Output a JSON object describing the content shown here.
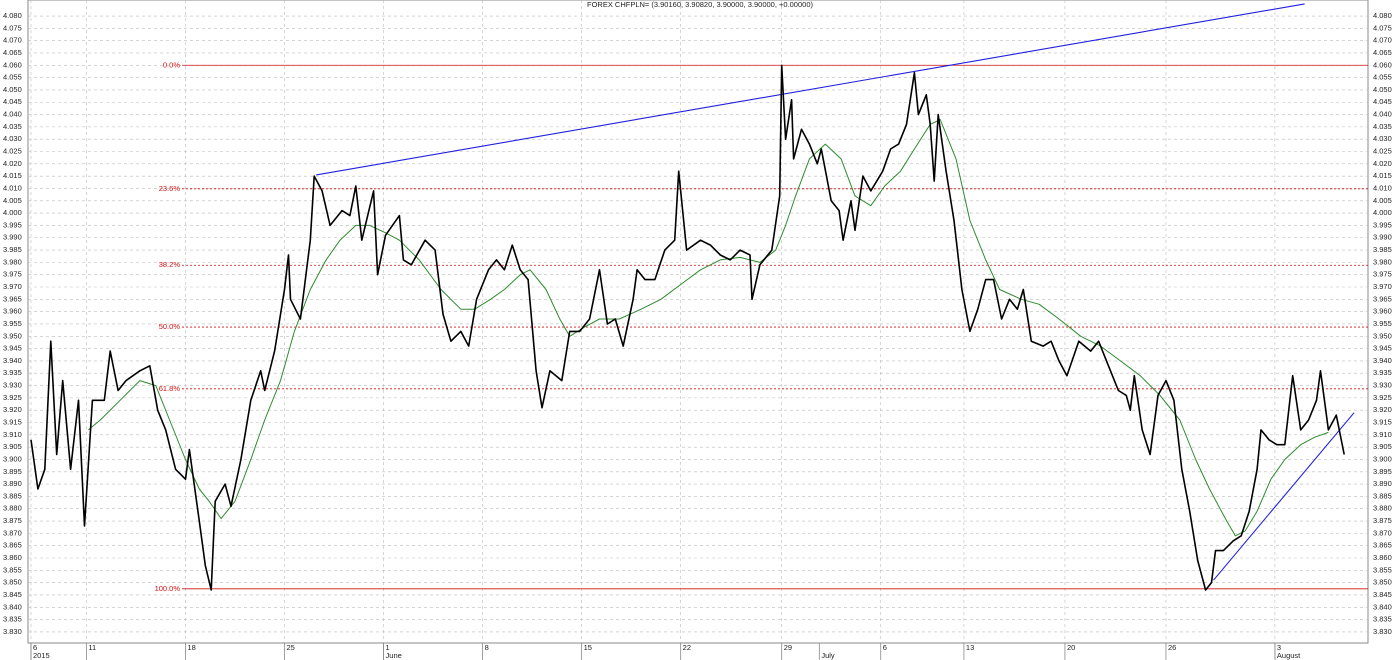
{
  "chart_data": {
    "type": "line",
    "title": "FOREX CHFPLN= (3.90160, 3.90820, 3.90000, 3.90000, +0.00000)",
    "xlim": [
      -0.15,
      67.5
    ],
    "ylim": [
      3.8255,
      4.0865
    ],
    "grid": true,
    "xticks": [
      {
        "value": 0,
        "label": "6"
      },
      {
        "value": 2.8,
        "label": "11"
      },
      {
        "value": 7.8,
        "label": "18"
      },
      {
        "value": 12.8,
        "label": "25"
      },
      {
        "value": 17.8,
        "label": "1"
      },
      {
        "value": 22.8,
        "label": "8"
      },
      {
        "value": 27.8,
        "label": "15"
      },
      {
        "value": 32.8,
        "label": "22"
      },
      {
        "value": 37.9,
        "label": "29"
      },
      {
        "value": 42.9,
        "label": "6"
      },
      {
        "value": 47.1,
        "label": "13"
      },
      {
        "value": 52.2,
        "label": "20"
      },
      {
        "value": 57.3,
        "label": "26"
      },
      {
        "value": 62.8,
        "label": "3"
      }
    ],
    "x_period_labels": [
      {
        "value": 0,
        "label": "2015"
      },
      {
        "value": 17.8,
        "label": "June"
      },
      {
        "value": 39.8,
        "label": "July"
      },
      {
        "value": 62.8,
        "label": "August"
      }
    ],
    "yticks": [
      {
        "value": 3.83,
        "label": "3.830"
      },
      {
        "value": 3.835,
        "label": "3.835"
      },
      {
        "value": 3.84,
        "label": "3.840"
      },
      {
        "value": 3.845,
        "label": "3.845"
      },
      {
        "value": 3.85,
        "label": "3.850"
      },
      {
        "value": 3.855,
        "label": "3.855"
      },
      {
        "value": 3.86,
        "label": "3.860"
      },
      {
        "value": 3.865,
        "label": "3.865"
      },
      {
        "value": 3.87,
        "label": "3.870"
      },
      {
        "value": 3.875,
        "label": "3.875"
      },
      {
        "value": 3.88,
        "label": "3.880"
      },
      {
        "value": 3.885,
        "label": "3.885"
      },
      {
        "value": 3.89,
        "label": "3.890"
      },
      {
        "value": 3.895,
        "label": "3.895"
      },
      {
        "value": 3.9,
        "label": "3.900"
      },
      {
        "value": 3.905,
        "label": "3.905"
      },
      {
        "value": 3.91,
        "label": "3.910"
      },
      {
        "value": 3.915,
        "label": "3.915"
      },
      {
        "value": 3.92,
        "label": "3.920"
      },
      {
        "value": 3.925,
        "label": "3.925"
      },
      {
        "value": 3.93,
        "label": "3.930"
      },
      {
        "value": 3.935,
        "label": "3.935"
      },
      {
        "value": 3.94,
        "label": "3.940"
      },
      {
        "value": 3.945,
        "label": "3.945"
      },
      {
        "value": 3.95,
        "label": "3.950"
      },
      {
        "value": 3.955,
        "label": "3.955"
      },
      {
        "value": 3.96,
        "label": "3.960"
      },
      {
        "value": 3.965,
        "label": "3.965"
      },
      {
        "value": 3.97,
        "label": "3.970"
      },
      {
        "value": 3.975,
        "label": "3.975"
      },
      {
        "value": 3.98,
        "label": "3.980"
      },
      {
        "value": 3.985,
        "label": "3.985"
      },
      {
        "value": 3.99,
        "label": "3.990"
      },
      {
        "value": 3.995,
        "label": "3.995"
      },
      {
        "value": 4.0,
        "label": "4.000"
      },
      {
        "value": 4.005,
        "label": "4.005"
      },
      {
        "value": 4.01,
        "label": "4.010"
      },
      {
        "value": 4.015,
        "label": "4.015"
      },
      {
        "value": 4.02,
        "label": "4.020"
      },
      {
        "value": 4.025,
        "label": "4.025"
      },
      {
        "value": 4.03,
        "label": "4.030"
      },
      {
        "value": 4.035,
        "label": "4.035"
      },
      {
        "value": 4.04,
        "label": "4.040"
      },
      {
        "value": 4.045,
        "label": "4.045"
      },
      {
        "value": 4.05,
        "label": "4.050"
      },
      {
        "value": 4.055,
        "label": "4.055"
      },
      {
        "value": 4.06,
        "label": "4.060"
      },
      {
        "value": 4.065,
        "label": "4.065"
      },
      {
        "value": 4.07,
        "label": "4.070"
      },
      {
        "value": 4.075,
        "label": "4.075"
      },
      {
        "value": 4.08,
        "label": "4.080"
      }
    ],
    "series": [
      {
        "color": "#000000",
        "x": [
          0,
          0.35,
          0.7,
          1.0,
          1.3,
          1.6,
          2.0,
          2.4,
          2.7,
          3.1,
          3.7,
          4.0,
          4.4,
          4.8,
          5.5,
          6.0,
          6.4,
          6.8,
          7.3,
          7.8,
          8.0,
          8.5,
          8.8,
          9.1,
          9.3,
          9.8,
          10.1,
          10.6,
          11.1,
          11.6,
          11.8,
          12.3,
          12.8,
          13.0,
          13.1,
          13.6,
          14.1,
          14.3,
          14.7,
          15.1,
          15.7,
          16.1,
          16.4,
          16.7,
          17.3,
          17.5,
          17.9,
          18.6,
          18.8,
          19.2,
          19.9,
          20.4,
          20.8,
          21.2,
          21.7,
          22.1,
          22.5,
          23.1,
          23.5,
          23.9,
          24.3,
          24.7,
          25.1,
          25.5,
          25.8,
          26.2,
          26.8,
          27.2,
          27.7,
          28.2,
          28.7,
          29.1,
          29.5,
          29.9,
          30.4,
          30.6,
          31.0,
          31.5,
          32.0,
          32.5,
          32.7,
          33.1,
          33.8,
          34.3,
          34.8,
          35.3,
          35.8,
          36.3,
          36.4,
          36.8,
          37.4,
          37.8,
          37.9,
          38.1,
          38.4,
          38.5,
          38.9,
          39.3,
          39.7,
          39.9,
          40.4,
          40.8,
          41.0,
          41.4,
          41.6,
          42.0,
          42.4,
          43.0,
          43.4,
          43.8,
          44.2,
          44.6,
          44.8,
          45.2,
          45.4,
          45.6,
          45.8,
          46.2,
          46.6,
          47.0,
          47.4,
          47.8,
          48.2,
          48.6,
          49.0,
          49.4,
          49.8,
          50.1,
          50.5,
          51.1,
          51.5,
          51.9,
          52.3,
          52.9,
          53.5,
          53.9,
          54.3,
          54.9,
          55.3,
          55.5,
          55.7,
          56.1,
          56.5,
          56.9,
          57.3,
          57.7,
          58.1,
          58.5,
          58.9,
          59.3,
          59.6,
          59.8,
          60.2,
          60.7,
          61.1,
          61.5,
          61.9,
          62.1,
          62.5,
          62.9,
          63.3,
          63.7,
          64.1,
          64.5,
          64.9,
          65.1,
          65.5,
          65.9,
          66.3
        ],
        "values": [
          3.908,
          3.888,
          3.896,
          3.948,
          3.902,
          3.932,
          3.896,
          3.924,
          3.873,
          3.924,
          3.924,
          3.944,
          3.928,
          3.932,
          3.936,
          3.938,
          3.92,
          3.912,
          3.896,
          3.892,
          3.904,
          3.875,
          3.857,
          3.847,
          3.883,
          3.89,
          3.881,
          3.9,
          3.924,
          3.936,
          3.928,
          3.944,
          3.969,
          3.983,
          3.965,
          3.957,
          3.989,
          4.015,
          4.009,
          3.995,
          4.001,
          3.999,
          4.011,
          3.989,
          4.009,
          3.975,
          3.991,
          3.999,
          3.981,
          3.979,
          3.989,
          3.985,
          3.959,
          3.948,
          3.952,
          3.946,
          3.965,
          3.977,
          3.981,
          3.977,
          3.987,
          3.977,
          3.973,
          3.936,
          3.921,
          3.936,
          3.932,
          3.952,
          3.952,
          3.957,
          3.977,
          3.955,
          3.957,
          3.946,
          3.965,
          3.977,
          3.973,
          3.973,
          3.985,
          3.989,
          4.017,
          3.985,
          3.989,
          3.987,
          3.983,
          3.981,
          3.985,
          3.983,
          3.965,
          3.979,
          3.985,
          4.007,
          4.06,
          4.03,
          4.046,
          4.022,
          4.034,
          4.028,
          4.02,
          4.026,
          4.005,
          4.001,
          3.989,
          4.005,
          3.993,
          4.015,
          4.009,
          4.017,
          4.026,
          4.028,
          4.036,
          4.057,
          4.04,
          4.048,
          4.036,
          4.013,
          4.04,
          4.017,
          3.997,
          3.969,
          3.952,
          3.961,
          3.973,
          3.973,
          3.957,
          3.965,
          3.961,
          3.969,
          3.948,
          3.946,
          3.948,
          3.94,
          3.934,
          3.948,
          3.944,
          3.948,
          3.94,
          3.928,
          3.926,
          3.92,
          3.934,
          3.912,
          3.902,
          3.926,
          3.932,
          3.924,
          3.896,
          3.879,
          3.859,
          3.847,
          3.85,
          3.863,
          3.863,
          3.867,
          3.869,
          3.879,
          3.896,
          3.912,
          3.908,
          3.906,
          3.906,
          3.934,
          3.912,
          3.916,
          3.924,
          3.936,
          3.912,
          3.918,
          3.902
        ]
      },
      {
        "color": "#2e8b2e",
        "x": [
          2.9,
          3.5,
          4.5,
          5.5,
          6.3,
          7.0,
          7.8,
          8.5,
          9.0,
          9.6,
          10.3,
          11.1,
          11.8,
          12.6,
          13.3,
          14.1,
          14.9,
          15.6,
          16.4,
          17.1,
          17.9,
          18.6,
          19.6,
          20.7,
          21.7,
          22.4,
          23.2,
          23.9,
          24.7,
          25.2,
          26.0,
          26.7,
          27.2,
          28.0,
          28.7,
          29.7,
          30.8,
          31.8,
          32.8,
          33.8,
          34.8,
          35.8,
          36.8,
          37.6,
          38.1,
          38.6,
          39.3,
          40.1,
          40.9,
          41.6,
          42.4,
          43.1,
          43.9,
          44.6,
          45.4,
          45.9,
          46.7,
          47.4,
          48.2,
          48.9,
          50.0,
          50.9,
          51.9,
          53.0,
          54.0,
          55.0,
          56.0,
          57.0,
          58.0,
          58.8,
          59.5,
          60.3,
          60.8,
          61.3,
          61.9,
          62.6,
          63.3,
          64.1,
          64.8,
          65.5
        ],
        "values": [
          3.912,
          3.916,
          3.924,
          3.932,
          3.93,
          3.916,
          3.9,
          3.888,
          3.883,
          3.876,
          3.883,
          3.9,
          3.916,
          3.932,
          3.952,
          3.969,
          3.981,
          3.989,
          3.995,
          3.995,
          3.992,
          3.989,
          3.981,
          3.969,
          3.961,
          3.961,
          3.965,
          3.969,
          3.975,
          3.977,
          3.969,
          3.957,
          3.95,
          3.954,
          3.957,
          3.957,
          3.961,
          3.965,
          3.971,
          3.977,
          3.981,
          3.982,
          3.98,
          3.985,
          3.995,
          4.007,
          4.022,
          4.028,
          4.022,
          4.007,
          4.003,
          4.011,
          4.017,
          4.026,
          4.036,
          4.038,
          4.022,
          3.997,
          3.981,
          3.969,
          3.965,
          3.963,
          3.957,
          3.95,
          3.946,
          3.94,
          3.934,
          3.926,
          3.916,
          3.9,
          3.888,
          3.876,
          3.869,
          3.871,
          3.879,
          3.892,
          3.9,
          3.906,
          3.909,
          3.911
        ]
      }
    ],
    "trendlines": [
      {
        "color": "#2020e0",
        "x": [
          14.4,
          64.3
        ],
        "values": [
          4.0155,
          4.0849
        ]
      },
      {
        "color": "#2020e0",
        "x": [
          59.7,
          66.8
        ],
        "values": [
          3.851,
          3.919
        ]
      }
    ],
    "fib_color": "#d01010",
    "fib_levels": [
      {
        "label": "0.0%",
        "value": 4.06
      },
      {
        "label": "23.6%",
        "value": 4.00985
      },
      {
        "label": "38.2%",
        "value": 3.97883
      },
      {
        "label": "50.0%",
        "value": 3.95375
      },
      {
        "label": "61.8%",
        "value": 3.92868
      },
      {
        "label": "100.0%",
        "value": 3.8475
      }
    ]
  }
}
